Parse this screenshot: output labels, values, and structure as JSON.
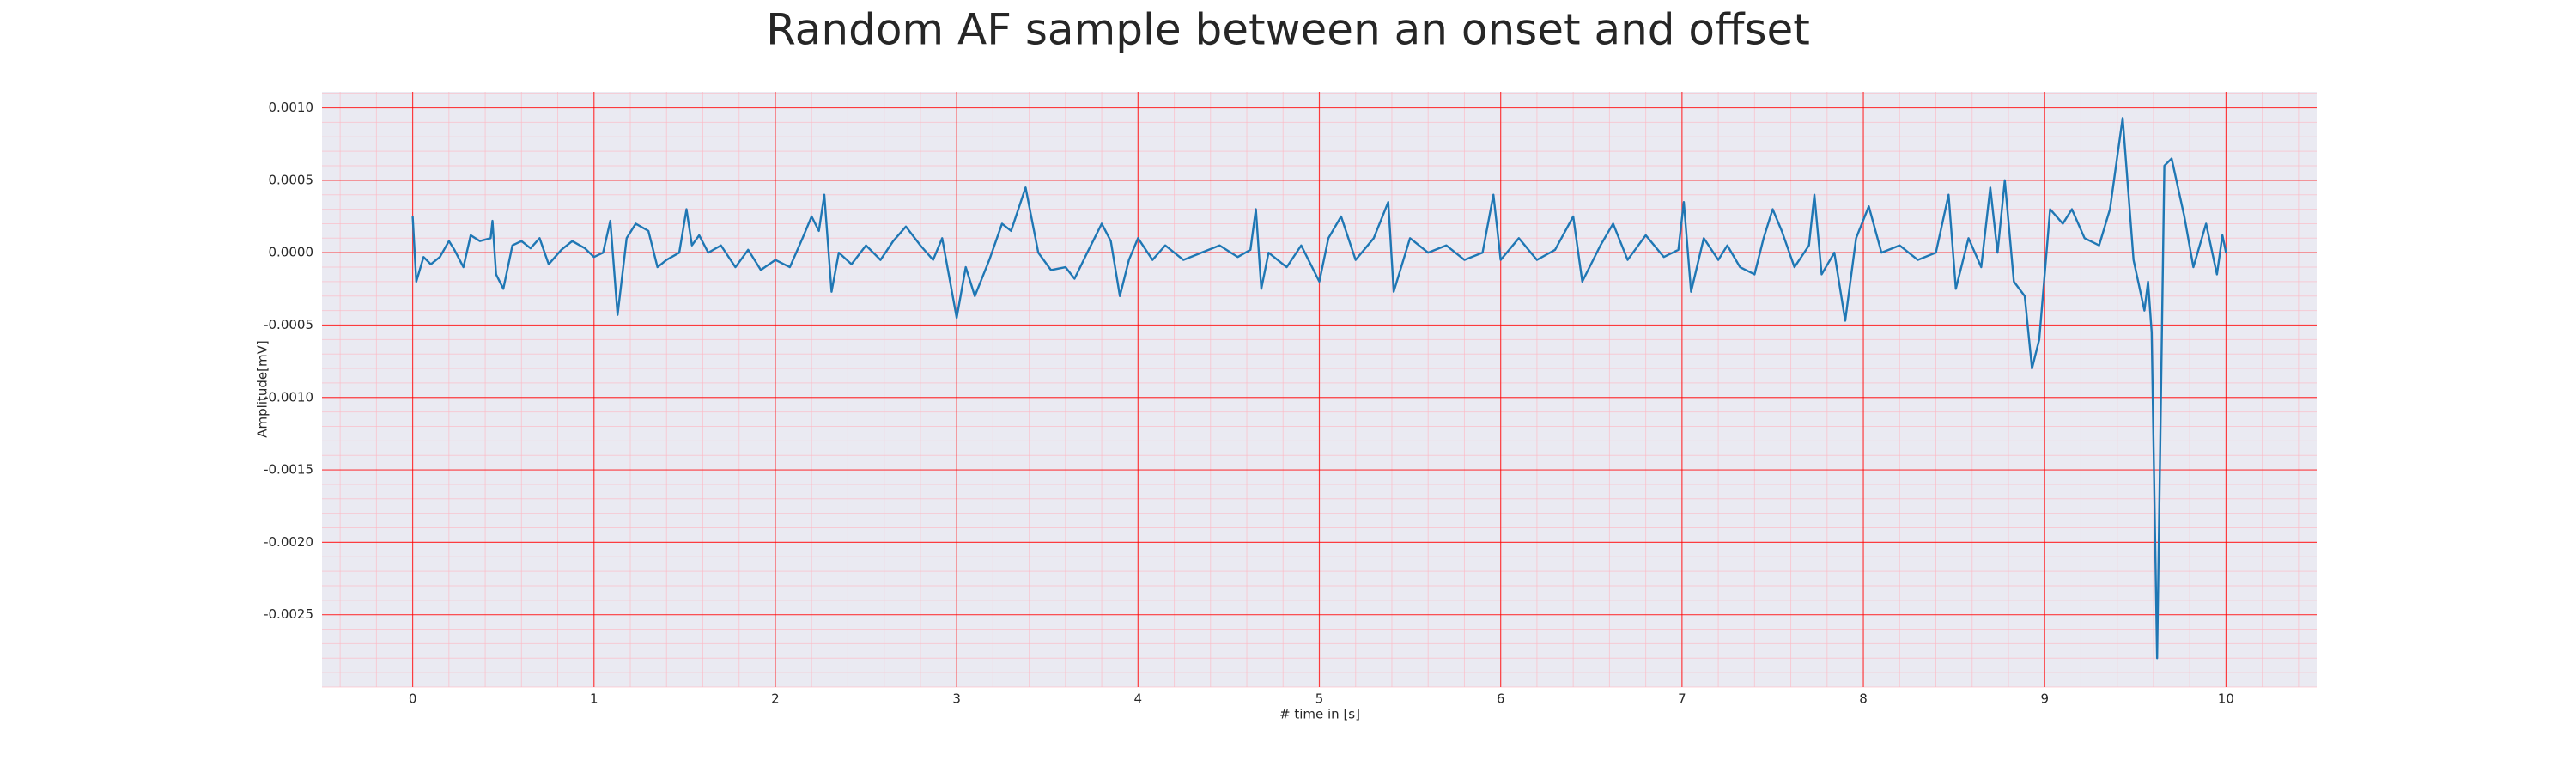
{
  "chart_data": {
    "type": "line",
    "title": "Random AF sample between an onset and offset",
    "xlabel": "# time in [s]",
    "ylabel": "Amplitude[mV]",
    "color": "#1f77b4",
    "x": [
      0,
      0.02,
      0.06,
      0.1,
      0.15,
      0.2,
      0.23,
      0.28,
      0.32,
      0.37,
      0.43,
      0.44,
      0.46,
      0.5,
      0.55,
      0.6,
      0.65,
      0.7,
      0.75,
      0.82,
      0.88,
      0.95,
      1.0,
      1.05,
      1.09,
      1.13,
      1.18,
      1.23,
      1.3,
      1.35,
      1.4,
      1.47,
      1.51,
      1.54,
      1.58,
      1.63,
      1.7,
      1.78,
      1.85,
      1.92,
      2.0,
      2.08,
      2.15,
      2.2,
      2.24,
      2.27,
      2.31,
      2.35,
      2.42,
      2.5,
      2.58,
      2.65,
      2.72,
      2.8,
      2.87,
      2.92,
      3.0,
      3.05,
      3.1,
      3.18,
      3.25,
      3.3,
      3.38,
      3.45,
      3.52,
      3.6,
      3.65,
      3.72,
      3.8,
      3.85,
      3.9,
      3.95,
      4.0,
      4.08,
      4.15,
      4.25,
      4.35,
      4.45,
      4.55,
      4.62,
      4.65,
      4.68,
      4.72,
      4.82,
      4.9,
      5.0,
      5.05,
      5.12,
      5.2,
      5.3,
      5.38,
      5.41,
      5.5,
      5.6,
      5.7,
      5.8,
      5.9,
      5.96,
      6.0,
      6.1,
      6.2,
      6.3,
      6.4,
      6.45,
      6.55,
      6.62,
      6.7,
      6.8,
      6.9,
      6.98,
      7.01,
      7.05,
      7.12,
      7.2,
      7.25,
      7.32,
      7.4,
      7.45,
      7.5,
      7.55,
      7.62,
      7.7,
      7.73,
      7.77,
      7.84,
      7.9,
      7.96,
      8.03,
      8.1,
      8.2,
      8.3,
      8.4,
      8.47,
      8.51,
      8.58,
      8.65,
      8.7,
      8.74,
      8.78,
      8.83,
      8.89,
      8.93,
      8.97,
      9.03,
      9.1,
      9.15,
      9.22,
      9.3,
      9.36,
      9.43,
      9.49,
      9.55,
      9.57,
      9.59,
      9.62,
      9.66,
      9.7,
      9.77,
      9.82,
      9.89,
      9.95,
      9.98,
      10.0
    ],
    "values": [
      0.00025,
      -0.0002,
      -3e-05,
      -8e-05,
      -3e-05,
      8e-05,
      2e-05,
      -0.0001,
      0.00012,
      8e-05,
      0.0001,
      0.00022,
      -0.00015,
      -0.00025,
      5e-05,
      8e-05,
      3e-05,
      0.0001,
      -8e-05,
      2e-05,
      8e-05,
      3e-05,
      -3e-05,
      0.0,
      0.00022,
      -0.00043,
      0.0001,
      0.0002,
      0.00015,
      -0.0001,
      -5e-05,
      0.0,
      0.0003,
      5e-05,
      0.00012,
      0.0,
      5e-05,
      -0.0001,
      2e-05,
      -0.00012,
      -5e-05,
      -0.0001,
      0.0001,
      0.00025,
      0.00015,
      0.0004,
      -0.00027,
      0.0,
      -8e-05,
      5e-05,
      -5e-05,
      8e-05,
      0.00018,
      5e-05,
      -5e-05,
      0.0001,
      -0.00045,
      -0.0001,
      -0.0003,
      -5e-05,
      0.0002,
      0.00015,
      0.00045,
      0.0,
      -0.00012,
      -0.0001,
      -0.00018,
      0.0,
      0.0002,
      8e-05,
      -0.0003,
      -5e-05,
      0.0001,
      -5e-05,
      5e-05,
      -5e-05,
      0.0,
      5e-05,
      -3e-05,
      2e-05,
      0.0003,
      -0.00025,
      0.0,
      -0.0001,
      5e-05,
      -0.0002,
      0.0001,
      0.00025,
      -5e-05,
      0.0001,
      0.00035,
      -0.00027,
      0.0001,
      0.0,
      5e-05,
      -5e-05,
      0.0,
      0.0004,
      -5e-05,
      0.0001,
      -5e-05,
      2e-05,
      0.00025,
      -0.0002,
      5e-05,
      0.0002,
      -5e-05,
      0.00012,
      -3e-05,
      2e-05,
      0.00035,
      -0.00027,
      0.0001,
      -5e-05,
      5e-05,
      -0.0001,
      -0.00015,
      0.0001,
      0.0003,
      0.00015,
      -0.0001,
      5e-05,
      0.0004,
      -0.00015,
      0.0,
      -0.00047,
      0.0001,
      0.00032,
      0.0,
      5e-05,
      -5e-05,
      0.0,
      0.0004,
      -0.00025,
      0.0001,
      -0.0001,
      0.00045,
      0.0,
      0.0005,
      -0.0002,
      -0.0003,
      -0.0008,
      -0.0006,
      0.0003,
      0.0002,
      0.0003,
      0.0001,
      5e-05,
      0.0003,
      0.00093,
      -5e-05,
      -0.0004,
      -0.0002,
      -0.00055,
      -0.0028,
      0.0006,
      0.00065,
      0.00025,
      -0.0001,
      0.0002,
      -0.00015,
      0.00012,
      0.0
    ],
    "xlim": [
      -0.5,
      10.5
    ],
    "ylim": [
      -0.003,
      0.00111
    ],
    "xticks": [
      0,
      1,
      2,
      3,
      4,
      5,
      6,
      7,
      8,
      9,
      10
    ],
    "yticks": [
      {
        "value": 0.001,
        "label": "0.0010"
      },
      {
        "value": 0.0005,
        "label": "0.0005"
      },
      {
        "value": 0,
        "label": "0.0000"
      },
      {
        "value": -0.0005,
        "label": "-0.0005"
      },
      {
        "value": -0.001,
        "label": "-0.0010"
      },
      {
        "value": -0.0015,
        "label": "-0.0015"
      },
      {
        "value": -0.002,
        "label": "-0.0020"
      },
      {
        "value": -0.0025,
        "label": "-0.0025"
      }
    ],
    "grid": true,
    "grid_color": "#ff0000",
    "minor_grid_color": "#ffb6c1",
    "minor_grid_step": {
      "x": 0.2,
      "y": 0.0001
    },
    "background": "#eaeaf2"
  }
}
